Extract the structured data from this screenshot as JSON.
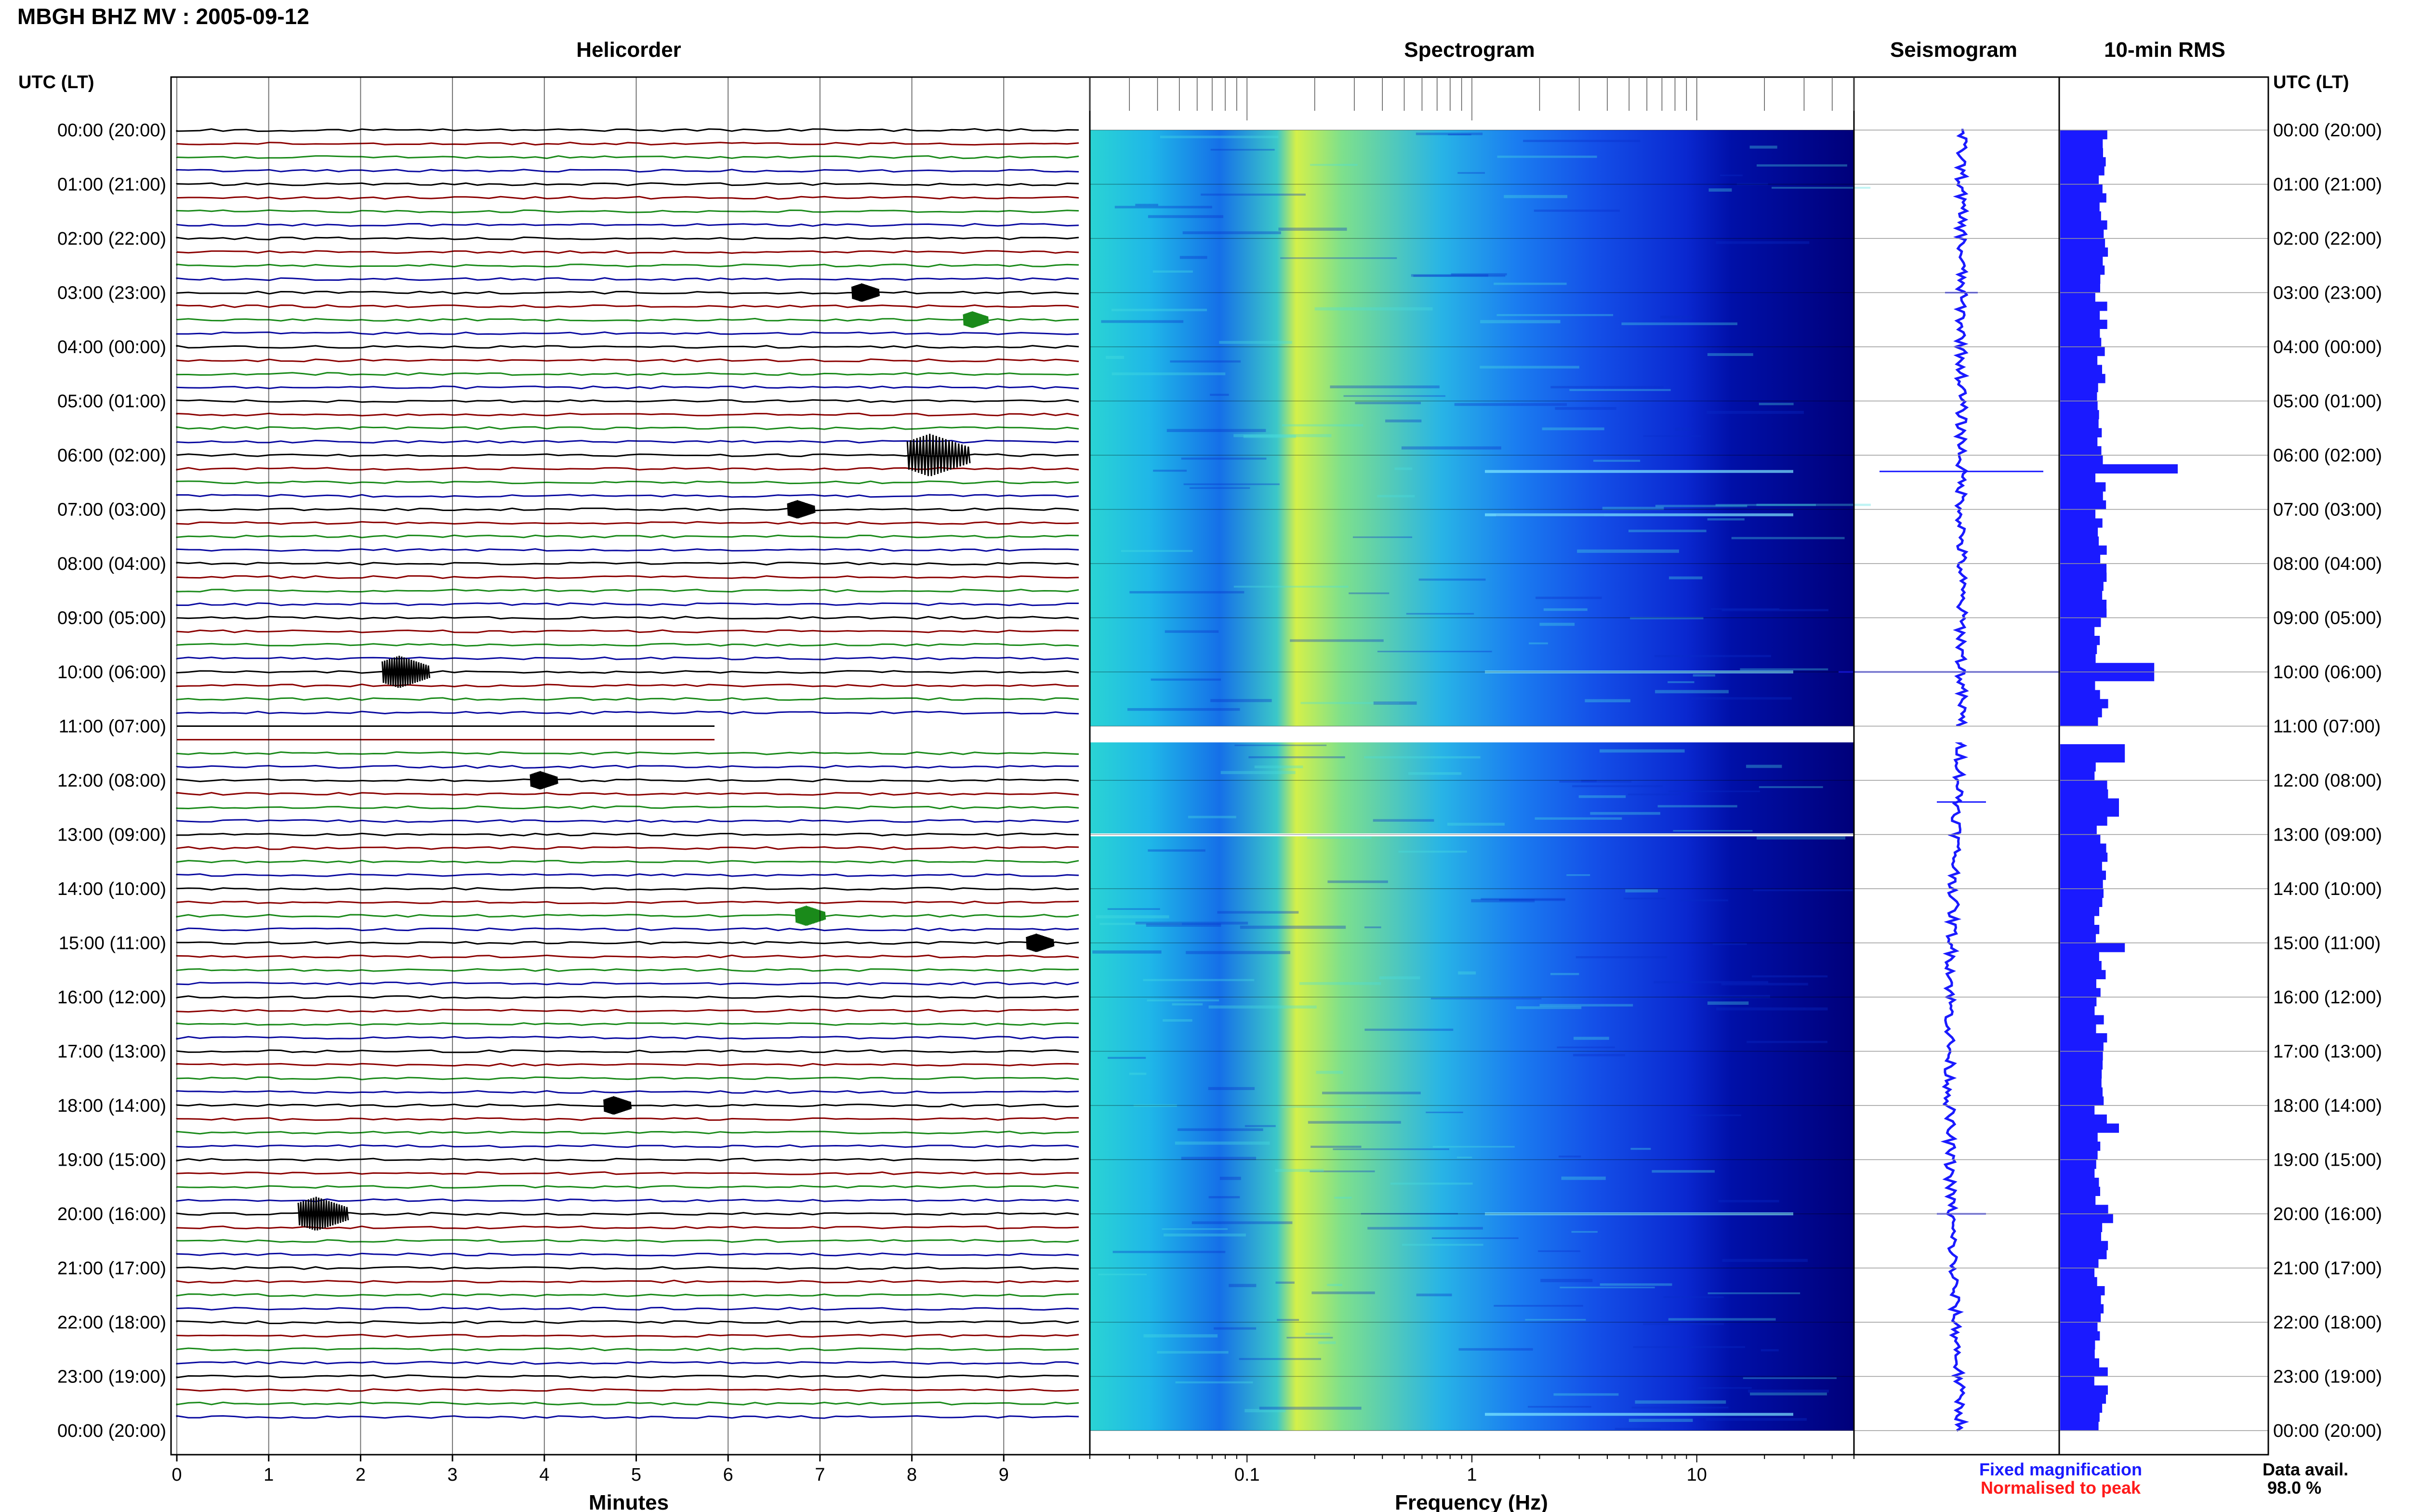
{
  "title": "MBGH BHZ MV : 2005-09-12",
  "panels": {
    "helicorder": "Helicorder",
    "spectrogram": "Spectrogram",
    "seismogram": "Seismogram",
    "rms": "10-min RMS"
  },
  "axes": {
    "left_header": "UTC (LT)",
    "right_header": "UTC (LT)",
    "helicorder_xlabel": "Minutes",
    "spectrogram_xlabel": "Frequency (Hz)"
  },
  "legend": {
    "fixed": "Fixed magnification",
    "normalised": "Normalised to peak",
    "fixed_color": "#1a1aff",
    "normalised_color": "#ff1a1a"
  },
  "data_availability": {
    "label": "Data avail.",
    "value": "98.0 %"
  },
  "colors": {
    "trace_cycle": [
      "#000000",
      "#8b0000",
      "#1a8a1a",
      "#0a0aa0"
    ],
    "spectrogram_low": "#00007a",
    "spectrogram_high": "#ffff40",
    "rms_bar": "#1a1aff"
  },
  "chart_data": [
    {
      "type": "line",
      "name": "helicorder",
      "x_range": [
        0,
        10
      ],
      "x_ticks": [
        "0",
        "1",
        "2",
        "3",
        "4",
        "5",
        "6",
        "7",
        "8",
        "9"
      ],
      "time_labels": [
        "00:00 (20:00)",
        "01:00 (21:00)",
        "02:00 (22:00)",
        "03:00 (23:00)",
        "04:00 (00:00)",
        "05:00 (01:00)",
        "06:00 (02:00)",
        "07:00 (03:00)",
        "08:00 (04:00)",
        "09:00 (05:00)",
        "10:00 (06:00)",
        "11:00 (07:00)",
        "12:00 (08:00)",
        "13:00 (09:00)",
        "14:00 (10:00)",
        "15:00 (11:00)",
        "16:00 (12:00)",
        "17:00 (13:00)",
        "18:00 (14:00)",
        "19:00 (15:00)",
        "20:00 (16:00)",
        "21:00 (17:00)",
        "22:00 (18:00)",
        "23:00 (19:00)",
        "00:00 (20:00)"
      ],
      "gap": {
        "start_hour": 11.0,
        "end_hour": 11.3
      },
      "events": [
        {
          "hour": 3.0,
          "minute": 7.5,
          "amp": 0.4
        },
        {
          "hour": 3.5,
          "minute": 8.7,
          "amp": 0.3
        },
        {
          "hour": 6.0,
          "minute": 8.3,
          "amp": 1.8
        },
        {
          "hour": 7.0,
          "minute": 6.8,
          "amp": 0.4
        },
        {
          "hour": 10.0,
          "minute": 2.5,
          "amp": 1.2
        },
        {
          "hour": 12.0,
          "minute": 4.0,
          "amp": 0.4
        },
        {
          "hour": 14.5,
          "minute": 6.9,
          "amp": 0.5
        },
        {
          "hour": 15.0,
          "minute": 9.4,
          "amp": 0.4
        },
        {
          "hour": 18.0,
          "minute": 4.8,
          "amp": 0.4
        },
        {
          "hour": 20.0,
          "minute": 1.6,
          "amp": 1.3
        }
      ]
    },
    {
      "type": "heatmap",
      "name": "spectrogram",
      "x_scale": "log",
      "x_range": [
        0.02,
        50
      ],
      "x_tick_labels": [
        "0.1",
        "1",
        "10"
      ],
      "y_range_hours": [
        0,
        24
      ],
      "gaps_hours": [
        [
          11.0,
          11.3
        ],
        [
          12.98,
          13.02
        ]
      ],
      "event_bands_hours": [
        6.3,
        7.1,
        10.0,
        20.0,
        23.7
      ]
    },
    {
      "type": "line",
      "name": "seismogram",
      "y_range_hours": [
        0,
        24
      ],
      "spikes": [
        {
          "hour": 3.0,
          "amp": 0.2
        },
        {
          "hour": 6.3,
          "amp": 1.0
        },
        {
          "hour": 10.0,
          "amp": 1.5
        },
        {
          "hour": 12.4,
          "amp": 0.3
        },
        {
          "hour": 20.0,
          "amp": 0.3
        }
      ]
    },
    {
      "type": "bar",
      "name": "10-min RMS",
      "y_range_hours": [
        0,
        24
      ],
      "peaks": [
        {
          "hour": 6.2,
          "value": 1.0
        },
        {
          "hour": 9.9,
          "value": 0.8
        },
        {
          "hour": 11.4,
          "value": 0.55
        },
        {
          "hour": 12.4,
          "value": 0.5
        },
        {
          "hour": 15.0,
          "value": 0.55
        },
        {
          "hour": 18.4,
          "value": 0.5
        },
        {
          "hour": 20.0,
          "value": 0.45
        }
      ],
      "baseline": 0.35
    }
  ]
}
